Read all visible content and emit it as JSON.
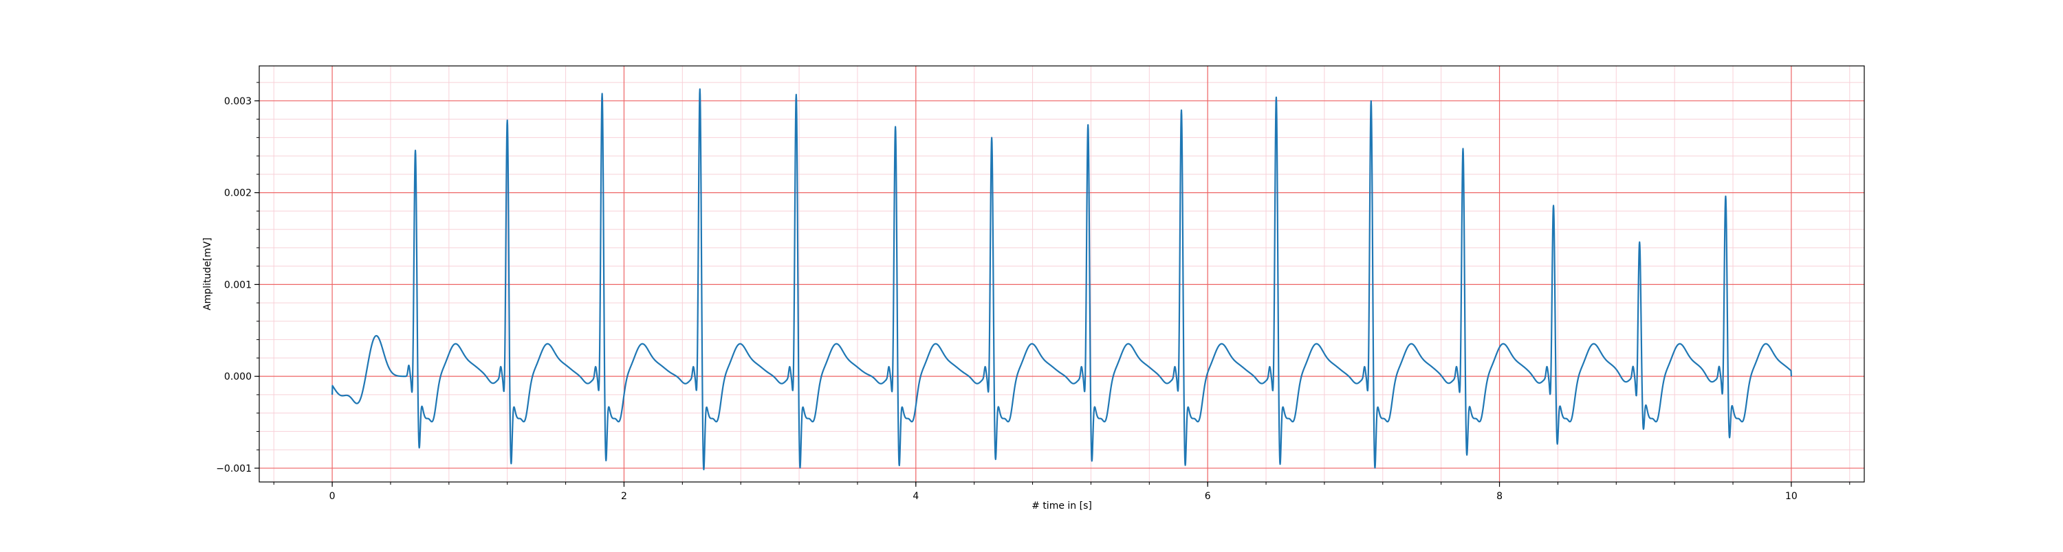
{
  "chart_data": {
    "type": "line",
    "title": "",
    "xlabel": "# time in [s]",
    "ylabel": "Amplitude[mV]",
    "xlim": [
      -0.5,
      10.5
    ],
    "ylim": [
      -0.00115,
      0.00338
    ],
    "x_ticks": [
      0,
      2,
      4,
      6,
      8,
      10
    ],
    "x_tick_labels": [
      "0",
      "2",
      "4",
      "6",
      "8",
      "10"
    ],
    "y_ticks": [
      -0.001,
      0.0,
      0.001,
      0.002,
      0.003
    ],
    "y_tick_labels": [
      "−0.001",
      "0.000",
      "0.001",
      "0.002",
      "0.003"
    ],
    "grid": true,
    "minor_grid": true,
    "legend": "none",
    "colors": {
      "line": "#1f77b4",
      "major_grid": "#ee6666",
      "minor_grid": "#f8d0d8",
      "axes": "#000000"
    },
    "series": [
      {
        "sampling": "ECG trace, amplitude in mV vs time in s",
        "start": {
          "x": 0.0,
          "y": -0.0002
        },
        "end": {
          "x": 10.0,
          "y": 0.0
        },
        "beats": [
          {
            "r_time": 0.57,
            "r_peak": 0.00248,
            "s_trough": -0.0007
          },
          {
            "r_time": 1.2,
            "r_peak": 0.00281,
            "s_trough": -0.00088
          },
          {
            "r_time": 1.85,
            "r_peak": 0.0031,
            "s_trough": -0.00085
          },
          {
            "r_time": 2.52,
            "r_peak": 0.00315,
            "s_trough": -0.00095
          },
          {
            "r_time": 3.18,
            "r_peak": 0.00309,
            "s_trough": -0.00093
          },
          {
            "r_time": 3.86,
            "r_peak": 0.00274,
            "s_trough": -0.0009
          },
          {
            "r_time": 4.52,
            "r_peak": 0.00262,
            "s_trough": -0.00083
          },
          {
            "r_time": 5.18,
            "r_peak": 0.00276,
            "s_trough": -0.00085
          },
          {
            "r_time": 5.82,
            "r_peak": 0.00292,
            "s_trough": -0.0009
          },
          {
            "r_time": 6.47,
            "r_peak": 0.00306,
            "s_trough": -0.00089
          },
          {
            "r_time": 7.12,
            "r_peak": 0.00302,
            "s_trough": -0.00093
          },
          {
            "r_time": 7.75,
            "r_peak": 0.0025,
            "s_trough": -0.00078
          },
          {
            "r_time": 8.37,
            "r_peak": 0.00188,
            "s_trough": -0.00065
          },
          {
            "r_time": 8.96,
            "r_peak": 0.00148,
            "s_trough": -0.00048
          },
          {
            "r_time": 9.55,
            "r_peak": 0.00198,
            "s_trough": -0.00058
          }
        ]
      }
    ]
  }
}
